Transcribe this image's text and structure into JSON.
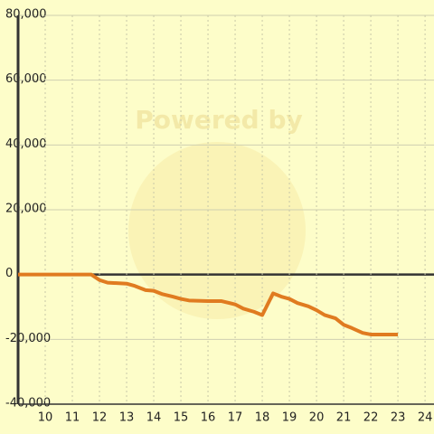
{
  "chart_data": {
    "type": "line",
    "watermark": "Powered by",
    "x": [
      9,
      10,
      11,
      11.7,
      12,
      12.3,
      13,
      13.3,
      13.7,
      14,
      14.3,
      14.7,
      15,
      15.3,
      16,
      16.5,
      17,
      17.3,
      17.7,
      18,
      18.4,
      18.7,
      19,
      19.3,
      19.7,
      20,
      20.3,
      20.7,
      21,
      21.3,
      21.7,
      22,
      22.5,
      23
    ],
    "series": [
      {
        "color": "#e07b20",
        "values": [
          0,
          0,
          0,
          0,
          -1700,
          -2500,
          -2800,
          -3500,
          -4800,
          -5000,
          -6000,
          -6800,
          -7500,
          -8000,
          -8200,
          -8200,
          -9200,
          -10500,
          -11500,
          -12500,
          -5800,
          -6800,
          -7500,
          -8800,
          -9800,
          -11000,
          -12500,
          -13500,
          -15500,
          -16500,
          -18000,
          -18500,
          -18500,
          -18500
        ]
      }
    ],
    "xlim": [
      9,
      24.33
    ],
    "xticks": [
      10,
      11,
      12,
      13,
      14,
      15,
      16,
      17,
      18,
      19,
      20,
      21,
      22,
      23,
      24
    ],
    "ylim": [
      -40000,
      80000
    ],
    "yticks": [
      {
        "value": -40000,
        "label": "-40,000"
      },
      {
        "value": -20000,
        "label": "-20,000"
      },
      0,
      {
        "value": 20000,
        "label": "20,000"
      },
      {
        "value": 40000,
        "label": "40,000"
      },
      {
        "value": 60000,
        "label": "60,000"
      },
      {
        "value": 80000,
        "label": "80,000"
      }
    ],
    "grid": true
  }
}
